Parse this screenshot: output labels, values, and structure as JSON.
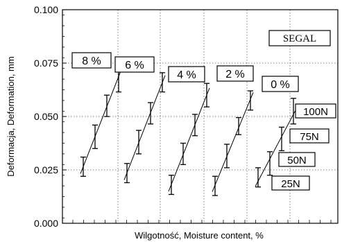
{
  "chart_data": {
    "type": "scatter",
    "title": "",
    "xlabel": "Wilgotność, Moisture content, %",
    "ylabel": "Deformacja, Deformation, mm",
    "ylim": [
      0.0,
      0.1
    ],
    "yticks": [
      "0.000",
      "0.025",
      "0.050",
      "0.075",
      "0.100"
    ],
    "grid": true,
    "legend_box": "SEGAL",
    "load_labels": [
      "100N",
      "75N",
      "50N",
      "25N"
    ],
    "series": [
      {
        "name": "8 %",
        "loads": [
          "25N",
          "50N",
          "75N",
          "100N"
        ],
        "values": [
          0.0265,
          0.0405,
          0.055,
          0.0685
        ],
        "error": [
          0.0045,
          0.0055,
          0.005,
          0.007
        ]
      },
      {
        "name": "6 %",
        "loads": [
          "25N",
          "50N",
          "75N",
          "100N"
        ],
        "values": [
          0.0235,
          0.038,
          0.0515,
          0.066
        ],
        "error": [
          0.0045,
          0.0055,
          0.005,
          0.0045
        ]
      },
      {
        "name": "4 %",
        "loads": [
          "25N",
          "50N",
          "75N",
          "100N"
        ],
        "values": [
          0.018,
          0.0325,
          0.046,
          0.06
        ],
        "error": [
          0.0045,
          0.005,
          0.005,
          0.0055
        ]
      },
      {
        "name": "2 %",
        "loads": [
          "25N",
          "50N",
          "75N",
          "100N"
        ],
        "values": [
          0.0175,
          0.0315,
          0.0455,
          0.0575
        ],
        "error": [
          0.0045,
          0.0055,
          0.004,
          0.0045
        ]
      },
      {
        "name": "0 %",
        "loads": [
          "25N",
          "50N",
          "75N",
          "100N"
        ],
        "values": [
          0.0215,
          0.028,
          0.0395,
          0.0525
        ],
        "error": [
          0.0045,
          0.0055,
          0.0055,
          0.006
        ]
      }
    ]
  }
}
